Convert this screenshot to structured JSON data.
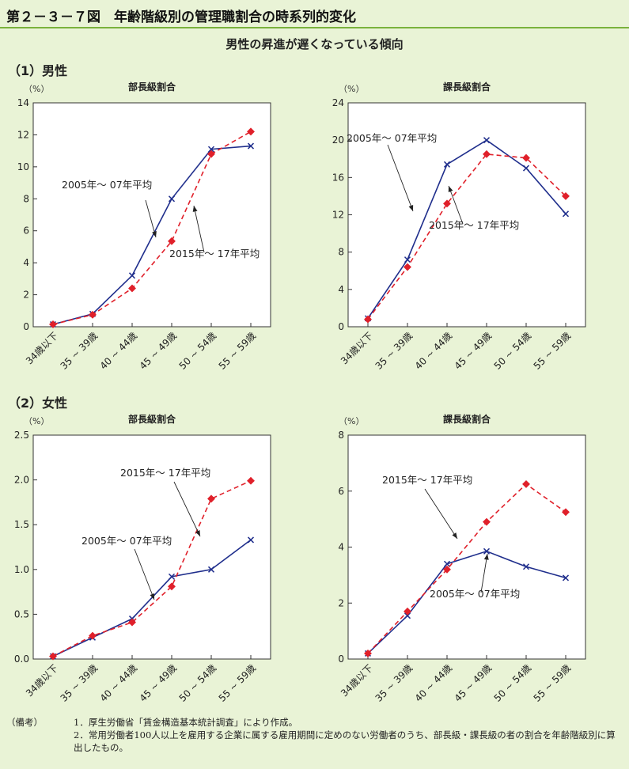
{
  "header": {
    "title": "第２－３－７図　年齢階級別の管理職割合の時系列的変化"
  },
  "subtitle": "男性の昇進が遅くなっている傾向",
  "sections": {
    "male": "（1）男性",
    "female": "（2）女性"
  },
  "notes": {
    "label": "（備考）",
    "items": [
      "1．厚生労働省「賃金構造基本統計調査」により作成。",
      "2．常用労働者100人以上を雇用する企業に属する雇用期間に定めのない労働者のうち、部長級・課長級の者の割合を年齢階級別に算出したもの。"
    ]
  },
  "chart_data": [
    {
      "type": "line",
      "title": "部長級割合",
      "ylabel": "（%）",
      "ylim": [
        0,
        14
      ],
      "yticks": [
        "0",
        "2",
        "4",
        "6",
        "8",
        "10",
        "12",
        "14"
      ],
      "categories": [
        "34歳以下",
        "35 ~ 39歳",
        "40 ~ 44歳",
        "45 ~ 49歳",
        "50 ~ 54歳",
        "55 ~ 59歳"
      ],
      "series": [
        {
          "name": "2005年～ 07年平均",
          "values": [
            0.15,
            0.8,
            3.2,
            8.0,
            11.1,
            11.3
          ],
          "color": "#1f2e8c",
          "style": "solid"
        },
        {
          "name": "2015年～ 17年平均",
          "values": [
            0.15,
            0.75,
            2.4,
            5.35,
            10.8,
            12.2
          ],
          "color": "#e0202a",
          "style": "dashed"
        }
      ]
    },
    {
      "type": "line",
      "title": "課長級割合",
      "ylabel": "（%）",
      "ylim": [
        0,
        24
      ],
      "yticks": [
        "0",
        "4",
        "8",
        "12",
        "16",
        "20",
        "24"
      ],
      "categories": [
        "34歳以下",
        "35 ~ 39歳",
        "40 ~ 44歳",
        "45 ~ 49歳",
        "50 ~ 54歳",
        "55 ~ 59歳"
      ],
      "series": [
        {
          "name": "2005年～ 07年平均",
          "values": [
            0.9,
            7.2,
            17.4,
            20.0,
            17.0,
            12.1
          ],
          "color": "#1f2e8c",
          "style": "solid"
        },
        {
          "name": "2015年～ 17年平均",
          "values": [
            0.8,
            6.4,
            13.2,
            18.5,
            18.1,
            14.0
          ],
          "color": "#e0202a",
          "style": "dashed"
        }
      ]
    },
    {
      "type": "line",
      "title": "部長級割合",
      "ylabel": "（%）",
      "ylim": [
        0,
        2.5
      ],
      "yticks": [
        "0.0",
        "0.5",
        "1.0",
        "1.5",
        "2.0",
        "2.5"
      ],
      "categories": [
        "34歳以下",
        "35 ~ 39歳",
        "40 ~ 44歳",
        "45 ~ 49歳",
        "50 ~ 54歳",
        "55 ~ 59歳"
      ],
      "series": [
        {
          "name": "2005年～ 07年平均",
          "values": [
            0.03,
            0.24,
            0.45,
            0.92,
            1.0,
            1.33
          ],
          "color": "#1f2e8c",
          "style": "solid"
        },
        {
          "name": "2015年～ 17年平均",
          "values": [
            0.03,
            0.26,
            0.41,
            0.81,
            1.79,
            1.99
          ],
          "color": "#e0202a",
          "style": "dashed"
        }
      ]
    },
    {
      "type": "line",
      "title": "課長級割合",
      "ylabel": "（%）",
      "ylim": [
        0,
        8
      ],
      "yticks": [
        "0",
        "2",
        "4",
        "6",
        "8"
      ],
      "categories": [
        "34歳以下",
        "35 ~ 39歳",
        "40 ~ 44歳",
        "45 ~ 49歳",
        "50 ~ 54歳",
        "55 ~ 59歳"
      ],
      "series": [
        {
          "name": "2005年～ 07年平均",
          "values": [
            0.2,
            1.55,
            3.4,
            3.85,
            3.3,
            2.9
          ],
          "color": "#1f2e8c",
          "style": "solid"
        },
        {
          "name": "2015年～ 17年平均",
          "values": [
            0.2,
            1.7,
            3.2,
            4.9,
            6.25,
            5.25
          ],
          "color": "#e0202a",
          "style": "dashed"
        }
      ]
    }
  ]
}
